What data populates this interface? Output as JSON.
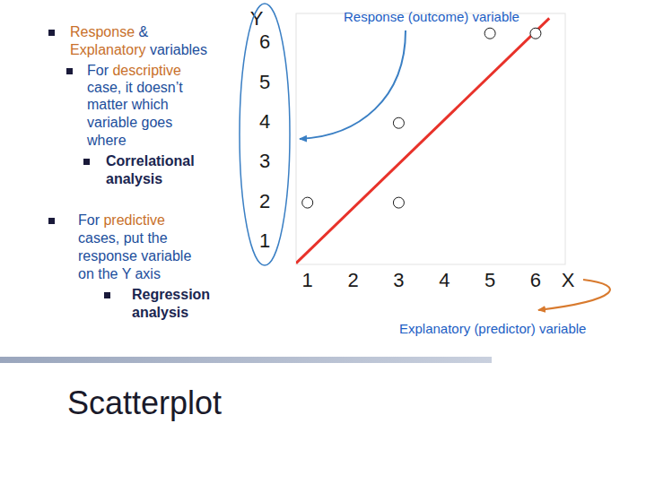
{
  "chart_data": {
    "type": "scatter",
    "x_axis_name": "X",
    "y_axis_name": "Y",
    "ylabel": "Response (outcome) variable",
    "xlabel": "Explanatory (predictor) variable",
    "xlim": [
      0.75,
      6.65
    ],
    "ylim": [
      0.45,
      6.75
    ],
    "xticks": [
      1,
      2,
      3,
      4,
      5,
      6
    ],
    "yticks": [
      1,
      2,
      3,
      4,
      5,
      6
    ],
    "grid": false,
    "series": [
      {
        "type": "scatter",
        "marker": "circle",
        "color": "#ffffff",
        "x": [
          1,
          3,
          3,
          5,
          6
        ],
        "values": [
          2,
          2,
          4,
          6.25,
          6.25
        ]
      },
      {
        "type": "line",
        "line_style": "solid",
        "color": "#e8322a",
        "x": [
          0.75,
          6.3
        ],
        "values": [
          0.48,
          6.63
        ]
      }
    ]
  },
  "slide": {
    "heading": "Scatterplot",
    "bullets": [
      {
        "lines": [
          [
            {
              "text": "Response",
              "color": "#c8702a"
            },
            {
              "text": " &",
              "color": "#1c4e9c"
            }
          ],
          [
            {
              "text": "Explanatory",
              "color": "#c8702a"
            },
            {
              "text": " variables",
              "color": "#1c4e9c"
            }
          ]
        ]
      },
      {
        "lines": [
          [
            {
              "text": "For ",
              "color": "#1c4e9c"
            },
            {
              "text": "descriptive",
              "color": "#c8702a"
            }
          ],
          [
            {
              "text": "case, it doesn’t",
              "color": "#1c4e9c"
            }
          ],
          [
            {
              "text": "matter which",
              "color": "#1c4e9c"
            }
          ],
          [
            {
              "text": "variable goes",
              "color": "#1c4e9c"
            }
          ],
          [
            {
              "text": "where",
              "color": "#1c4e9c"
            }
          ]
        ]
      },
      {
        "lines": [
          [
            {
              "text": "Correlational",
              "color": "#1a2550"
            }
          ],
          [
            {
              "text": "analysis",
              "color": "#1a2550"
            }
          ]
        ]
      },
      {
        "lines": [
          [
            {
              "text": "For ",
              "color": "#1c4e9c"
            },
            {
              "text": "predictive",
              "color": "#c8702a"
            }
          ],
          [
            {
              "text": "cases, put the",
              "color": "#1c4e9c"
            }
          ],
          [
            {
              "text": "response variable",
              "color": "#1c4e9c"
            }
          ],
          [
            {
              "text": "on the Y axis",
              "color": "#1c4e9c"
            }
          ]
        ]
      },
      {
        "lines": [
          [
            {
              "text": "Regression",
              "color": "#1a2550"
            }
          ],
          [
            {
              "text": "analysis",
              "color": "#1a2550"
            }
          ]
        ]
      }
    ]
  }
}
